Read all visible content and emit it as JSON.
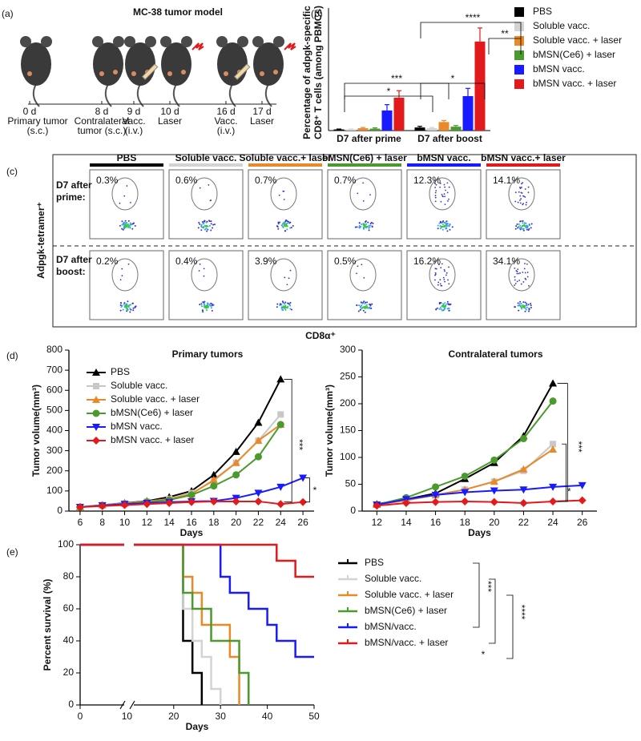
{
  "panel_labels": [
    "(a)",
    "(b)",
    "(c)",
    "(d)",
    "(e)"
  ],
  "timeline": {
    "title": "MC-38 tumor model",
    "events": [
      {
        "day": "0 d",
        "lines": [
          "Primary tumor",
          "(s.c.)"
        ]
      },
      {
        "day": "8 d",
        "lines": [
          "Contralateral",
          "tumor (s.c.)"
        ]
      },
      {
        "day": "9 d",
        "lines": [
          "Vacc.",
          "(i.v.)"
        ]
      },
      {
        "day": "10 d",
        "lines": [
          "Laser"
        ]
      },
      {
        "day": "16 d",
        "lines": [
          "Vacc.",
          "(i.v.)"
        ]
      },
      {
        "day": "17 d",
        "lines": [
          "Laser"
        ]
      }
    ]
  },
  "flow": {
    "headers": [
      "PBS",
      "Soluble vacc.",
      "Soluble vacc.+ laser",
      "bMSN(Ce6) + laser",
      "bMSN vacc.",
      "bMSN vacc.+ laser"
    ],
    "header_colors": [
      "#000000",
      "#d3d3d3",
      "#e8892a",
      "#4a9a2e",
      "#1a1aff",
      "#e31a1c"
    ],
    "row_labels": [
      [
        "D7 after",
        "prime:"
      ],
      [
        "D7 after",
        "boost:"
      ]
    ],
    "percentages": [
      [
        "0.3%",
        "0.6%",
        "0.7%",
        "0.7%",
        "12.3%",
        "14.1%"
      ],
      [
        "0.2%",
        "0.4%",
        "3.9%",
        "0.5%",
        "16.2%",
        "34.1%"
      ]
    ],
    "y_label": "Adpgk-tetramer⁺",
    "x_label": "CD8α⁺"
  },
  "chart_data": [
    {
      "type": "bar",
      "y_label": [
        "Percentage of adpgk-specific",
        "CD8⁺ T cells (among PBMCs)"
      ],
      "categories": [
        "D7 after prime",
        "D7 after boost"
      ],
      "ylim": [
        0,
        30
      ],
      "series": [
        {
          "name": "PBS",
          "color": "#000000",
          "values": [
            0.3,
            0.8
          ],
          "errors": [
            0.1,
            0.3
          ]
        },
        {
          "name": "Soluble vacc.",
          "color": "#d3d3d3",
          "values": [
            0.3,
            0.6
          ],
          "errors": [
            0.1,
            0.2
          ]
        },
        {
          "name": "Soluble vacc. + laser",
          "color": "#e8892a",
          "values": [
            0.6,
            2.2
          ],
          "errors": [
            0.2,
            0.4
          ]
        },
        {
          "name": "bMSN(Ce6) + laser",
          "color": "#4a9a2e",
          "values": [
            0.5,
            1.0
          ],
          "errors": [
            0.2,
            0.3
          ]
        },
        {
          "name": "bMSN vacc.",
          "color": "#1a1aff",
          "values": [
            5.2,
            8.9
          ],
          "errors": [
            1.5,
            2.0
          ]
        },
        {
          "name": "bMSN vacc. + laser",
          "color": "#e31a1c",
          "values": [
            8.5,
            23
          ],
          "errors": [
            1.8,
            3.5
          ]
        }
      ],
      "annotations": [
        "*",
        "***",
        "*",
        "****",
        "**"
      ]
    },
    {
      "type": "line",
      "title": "Primary tumors",
      "x_label": "Days",
      "y_label": "Tumor volume(mm³)",
      "x": [
        6,
        8,
        10,
        12,
        14,
        16,
        18,
        20,
        22,
        24,
        26
      ],
      "xlim": [
        5,
        27
      ],
      "xticks": [
        6,
        8,
        10,
        12,
        14,
        16,
        18,
        20,
        22,
        24,
        26
      ],
      "ylim": [
        0,
        800
      ],
      "yticks": [
        0,
        100,
        200,
        300,
        400,
        500,
        600,
        700,
        800
      ],
      "legend": "upper left",
      "series": [
        {
          "name": "PBS",
          "color": "#000000",
          "marker": "triangle",
          "values": [
            20,
            30,
            40,
            50,
            70,
            100,
            180,
            295,
            440,
            655,
            null
          ]
        },
        {
          "name": "Soluble vacc.",
          "color": "#c8c8c8",
          "marker": "square",
          "values": [
            20,
            30,
            38,
            48,
            60,
            90,
            150,
            240,
            350,
            480,
            null
          ]
        },
        {
          "name": "Soluble vacc. + laser",
          "color": "#e8892a",
          "marker": "triangle",
          "values": [
            20,
            30,
            38,
            48,
            60,
            85,
            155,
            240,
            350,
            430,
            null
          ]
        },
        {
          "name": "bMSN(Ce6) + laser",
          "color": "#4a9a2e",
          "marker": "circle",
          "values": [
            20,
            28,
            35,
            45,
            55,
            80,
            125,
            180,
            270,
            430,
            null
          ]
        },
        {
          "name": "bMSN vacc.",
          "color": "#1a1aff",
          "marker": "down",
          "values": [
            20,
            28,
            35,
            40,
            45,
            48,
            50,
            65,
            90,
            120,
            165
          ]
        },
        {
          "name": "bMSN vacc. + laser",
          "color": "#e31a1c",
          "marker": "diamond",
          "values": [
            20,
            25,
            30,
            35,
            40,
            45,
            48,
            48,
            48,
            35,
            45
          ]
        }
      ],
      "annotations": [
        "***",
        "*"
      ]
    },
    {
      "type": "line",
      "title": "Contralateral tumors",
      "x_label": "Days",
      "y_label": "Tumor volume(mm³)",
      "x": [
        12,
        14,
        16,
        18,
        20,
        22,
        24,
        26
      ],
      "xlim": [
        11,
        27
      ],
      "xticks": [
        12,
        14,
        16,
        18,
        20,
        22,
        24,
        26
      ],
      "ylim": [
        0,
        300
      ],
      "yticks": [
        0,
        50,
        100,
        150,
        200,
        250,
        300
      ],
      "series": [
        {
          "color": "#000000",
          "marker": "triangle",
          "values": [
            13,
            22,
            33,
            60,
            90,
            140,
            238,
            null
          ]
        },
        {
          "color": "#c8c8c8",
          "marker": "square",
          "values": [
            12,
            20,
            30,
            40,
            55,
            75,
            125,
            null
          ]
        },
        {
          "color": "#e8892a",
          "marker": "triangle",
          "values": [
            12,
            20,
            30,
            40,
            55,
            78,
            115,
            null
          ]
        },
        {
          "color": "#4a9a2e",
          "marker": "circle",
          "values": [
            12,
            25,
            45,
            65,
            95,
            135,
            205,
            null
          ]
        },
        {
          "color": "#1a1aff",
          "marker": "down",
          "values": [
            12,
            22,
            30,
            35,
            38,
            40,
            45,
            48
          ]
        },
        {
          "color": "#e31a1c",
          "marker": "diamond",
          "values": [
            10,
            15,
            17,
            18,
            17,
            15,
            18,
            20
          ]
        }
      ],
      "annotations": [
        "***",
        "*"
      ]
    },
    {
      "type": "step",
      "x_label": "Days",
      "y_label": "Percent survival (%)",
      "xlim": [
        0,
        50
      ],
      "xticks": [
        0,
        10,
        20,
        30,
        40,
        50
      ],
      "ylim": [
        0,
        100
      ],
      "yticks": [
        0,
        20,
        40,
        60,
        80,
        100
      ],
      "series": [
        {
          "name": "PBS",
          "color": "#000000",
          "x": [
            0,
            22,
            24,
            26
          ],
          "values": [
            100,
            40,
            20,
            0
          ]
        },
        {
          "name": "Soluble vacc.",
          "color": "#d3d3d3",
          "x": [
            0,
            22,
            24,
            26,
            28,
            30
          ],
          "values": [
            100,
            60,
            40,
            30,
            10,
            0
          ]
        },
        {
          "name": "Soluble vacc. + laser",
          "color": "#e8892a",
          "x": [
            0,
            22,
            24,
            26,
            32,
            34
          ],
          "values": [
            100,
            80,
            70,
            50,
            30,
            0
          ]
        },
        {
          "name": "bMSN(Ce6) + laser",
          "color": "#4a9a2e",
          "x": [
            0,
            22,
            24,
            28,
            34,
            36
          ],
          "values": [
            100,
            70,
            60,
            40,
            20,
            0
          ]
        },
        {
          "name": "bMSN/vacc.",
          "color": "#1a1aff",
          "x": [
            0,
            30,
            32,
            36,
            40,
            42,
            46,
            50
          ],
          "values": [
            100,
            80,
            70,
            60,
            50,
            40,
            30,
            30
          ]
        },
        {
          "name": "bMSN/vacc. + laser",
          "color": "#e31a1c",
          "x": [
            0,
            42,
            46,
            50
          ],
          "values": [
            100,
            90,
            80,
            80
          ]
        }
      ],
      "annotations": [
        "***",
        "****",
        "*"
      ]
    }
  ]
}
